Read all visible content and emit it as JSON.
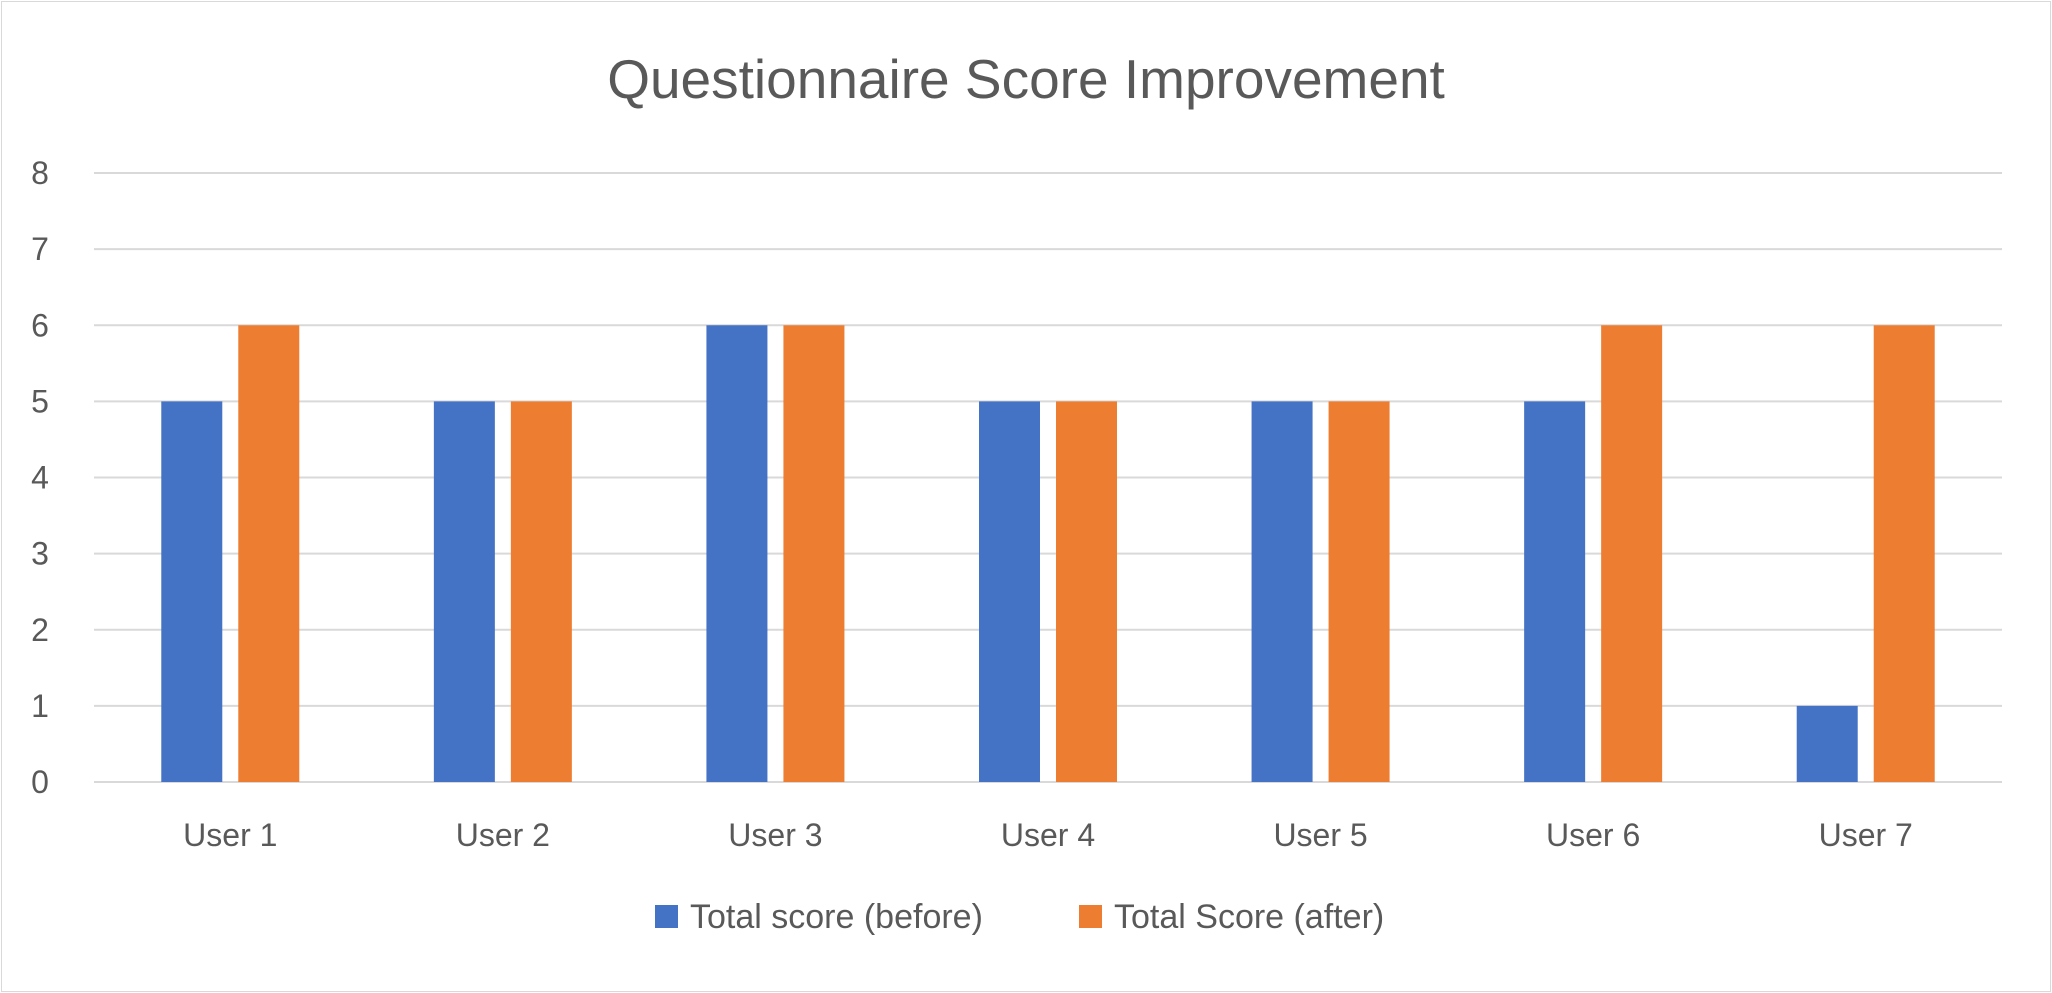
{
  "chart_data": {
    "type": "bar",
    "title": "Questionnaire Score Improvement",
    "xlabel": "",
    "ylabel": "",
    "categories": [
      "User 1",
      "User 2",
      "User 3",
      "User 4",
      "User 5",
      "User 6",
      "User 7"
    ],
    "series": [
      {
        "name": "Total score (before)",
        "color": "#4472c4",
        "values": [
          5,
          5,
          6,
          5,
          5,
          5,
          1
        ]
      },
      {
        "name": "Total Score (after)",
        "color": "#ed7d31",
        "values": [
          6,
          5,
          6,
          5,
          5,
          6,
          6
        ]
      }
    ],
    "ylim": [
      0,
      8
    ],
    "yticks": [
      "0",
      "1",
      "2",
      "3",
      "4",
      "5",
      "6",
      "7",
      "8"
    ],
    "grid": true,
    "legend_position": "bottom"
  }
}
